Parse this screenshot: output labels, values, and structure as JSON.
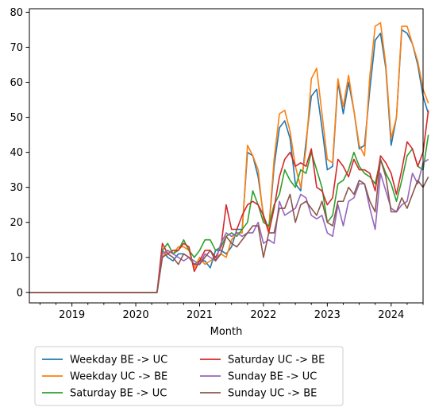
{
  "chart_data": {
    "type": "line",
    "title": "",
    "xlabel": "Month",
    "ylabel": "",
    "x_start": "2018-05",
    "x_end": "2024-07",
    "xlim": [
      "2018-05",
      "2024-07"
    ],
    "ylim": [
      -3,
      81
    ],
    "grid": false,
    "legend_position": "below",
    "x_ticks": [
      {
        "date": "2019-01",
        "label": "2019"
      },
      {
        "date": "2020-01",
        "label": "2020"
      },
      {
        "date": "2021-01",
        "label": "2021"
      },
      {
        "date": "2022-01",
        "label": "2022"
      },
      {
        "date": "2023-01",
        "label": "2023"
      },
      {
        "date": "2024-01",
        "label": "2024"
      }
    ],
    "y_ticks": [
      0,
      10,
      20,
      30,
      40,
      50,
      60,
      70,
      80
    ],
    "series": [
      {
        "name": "Weekday BE -> UC",
        "color": "#1f77b4",
        "values": [
          0,
          0,
          0,
          0,
          0,
          0,
          0,
          0,
          0,
          0,
          0,
          0,
          0,
          0,
          0,
          0,
          0,
          0,
          0,
          0,
          0,
          0,
          0,
          0,
          0,
          12,
          10,
          9,
          11,
          11,
          10,
          8,
          9,
          9,
          7,
          12,
          12,
          11,
          13,
          18,
          18,
          40,
          39,
          33,
          22,
          18,
          36,
          47,
          49,
          44,
          31,
          29,
          43,
          56,
          58,
          47,
          35,
          36,
          60,
          51,
          60,
          52,
          41,
          42,
          58,
          72,
          74,
          64,
          42,
          50,
          75,
          74,
          71,
          65,
          56,
          51
        ]
      },
      {
        "name": "Weekday UC -> BE",
        "color": "#ff7f0e",
        "values": [
          0,
          0,
          0,
          0,
          0,
          0,
          0,
          0,
          0,
          0,
          0,
          0,
          0,
          0,
          0,
          0,
          0,
          0,
          0,
          0,
          0,
          0,
          0,
          0,
          0,
          10,
          12,
          11,
          13,
          13,
          12,
          7,
          10,
          8,
          9,
          10,
          11,
          10,
          15,
          17,
          17,
          42,
          39,
          35,
          21,
          18,
          38,
          51,
          52,
          46,
          36,
          30,
          41,
          61,
          64,
          51,
          38,
          37,
          61,
          53,
          62,
          52,
          42,
          39,
          62,
          76,
          77,
          65,
          44,
          50,
          76,
          76,
          71,
          66,
          58,
          54
        ]
      },
      {
        "name": "Saturday BE -> UC",
        "color": "#2ca02c",
        "values": [
          0,
          0,
          0,
          0,
          0,
          0,
          0,
          0,
          0,
          0,
          0,
          0,
          0,
          0,
          0,
          0,
          0,
          0,
          0,
          0,
          0,
          0,
          0,
          0,
          0,
          12,
          14,
          11,
          12,
          15,
          12,
          10,
          12,
          15,
          15,
          12,
          13,
          16,
          17,
          16,
          18,
          20,
          29,
          25,
          20,
          19,
          25,
          28,
          35,
          32,
          30,
          35,
          34,
          40,
          35,
          30,
          20,
          22,
          31,
          32,
          35,
          40,
          36,
          34,
          33,
          31,
          38,
          34,
          31,
          26,
          32,
          39,
          41,
          36,
          35,
          45
        ]
      },
      {
        "name": "Saturday UC -> BE",
        "color": "#d62728",
        "values": [
          0,
          0,
          0,
          0,
          0,
          0,
          0,
          0,
          0,
          0,
          0,
          0,
          0,
          0,
          0,
          0,
          0,
          0,
          0,
          0,
          0,
          0,
          0,
          0,
          0,
          14,
          11,
          12,
          12,
          14,
          13,
          6,
          9,
          12,
          12,
          10,
          13,
          25,
          18,
          18,
          22,
          25,
          26,
          25,
          22,
          17,
          24,
          33,
          38,
          40,
          36,
          37,
          36,
          41,
          30,
          29,
          25,
          27,
          38,
          36,
          33,
          38,
          35,
          35,
          34,
          29,
          39,
          37,
          34,
          28,
          35,
          43,
          41,
          36,
          40,
          52
        ]
      },
      {
        "name": "Sunday BE -> UC",
        "color": "#9467bd",
        "values": [
          0,
          0,
          0,
          0,
          0,
          0,
          0,
          0,
          0,
          0,
          0,
          0,
          0,
          0,
          0,
          0,
          0,
          0,
          0,
          0,
          0,
          0,
          0,
          0,
          0,
          11,
          12,
          11,
          10,
          9,
          10,
          9,
          8,
          11,
          10,
          9,
          14,
          17,
          16,
          17,
          16,
          17,
          17,
          20,
          14,
          15,
          14,
          26,
          22,
          23,
          24,
          28,
          27,
          22,
          21,
          22,
          17,
          16,
          25,
          19,
          26,
          27,
          31,
          31,
          24,
          18,
          34,
          29,
          24,
          23,
          25,
          26,
          34,
          31,
          37,
          38
        ]
      },
      {
        "name": "Sunday UC -> BE",
        "color": "#8c564b",
        "values": [
          0,
          0,
          0,
          0,
          0,
          0,
          0,
          0,
          0,
          0,
          0,
          0,
          0,
          0,
          0,
          0,
          0,
          0,
          0,
          0,
          0,
          0,
          0,
          0,
          0,
          10,
          11,
          10,
          8,
          11,
          10,
          8,
          8,
          10,
          12,
          9,
          11,
          16,
          14,
          13,
          15,
          17,
          19,
          19,
          10,
          17,
          17,
          24,
          24,
          28,
          20,
          25,
          26,
          24,
          22,
          26,
          20,
          19,
          26,
          26,
          30,
          28,
          32,
          31,
          26,
          23,
          38,
          33,
          23,
          23,
          27,
          24,
          28,
          32,
          30,
          33
        ]
      }
    ]
  }
}
